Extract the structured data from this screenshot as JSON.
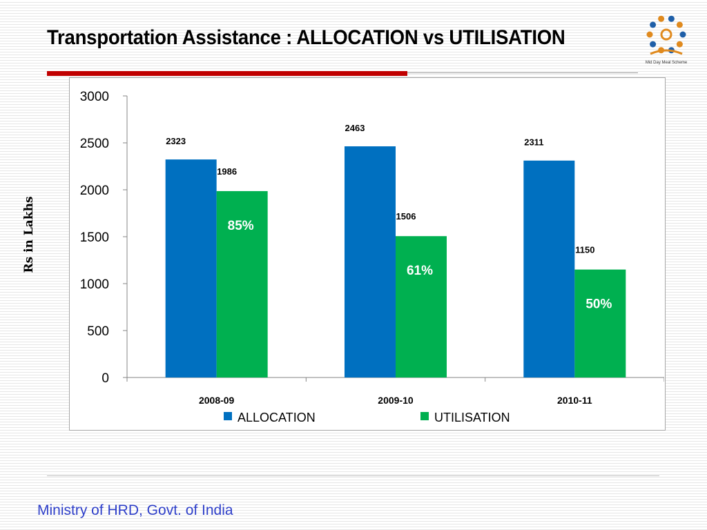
{
  "slide": {
    "title": "Transportation Assistance : ALLOCATION vs UTILISATION",
    "footer": "Ministry of HRD, Govt. of India",
    "logo_caption": "Mid Day Meal Scheme"
  },
  "colors": {
    "allocation": "#0070c0",
    "utilisation": "#00b050",
    "title_rule": "#c00000",
    "footer_text": "#2e3fc9"
  },
  "chart_data": {
    "type": "bar",
    "title": "",
    "xlabel": "",
    "ylabel": "Rs in Lakhs",
    "categories": [
      "2008-09",
      "2009-10",
      "2010-11"
    ],
    "series": [
      {
        "name": "ALLOCATION",
        "values": [
          2323,
          2463,
          2311
        ]
      },
      {
        "name": "UTILISATION",
        "values": [
          1986,
          1506,
          1150
        ]
      }
    ],
    "percent_labels": [
      "85%",
      "61%",
      "50%"
    ],
    "ylim": [
      0,
      3000
    ],
    "yticks": [
      0,
      500,
      1000,
      1500,
      2000,
      2500,
      3000
    ],
    "grid": false,
    "legend": "bottom"
  }
}
